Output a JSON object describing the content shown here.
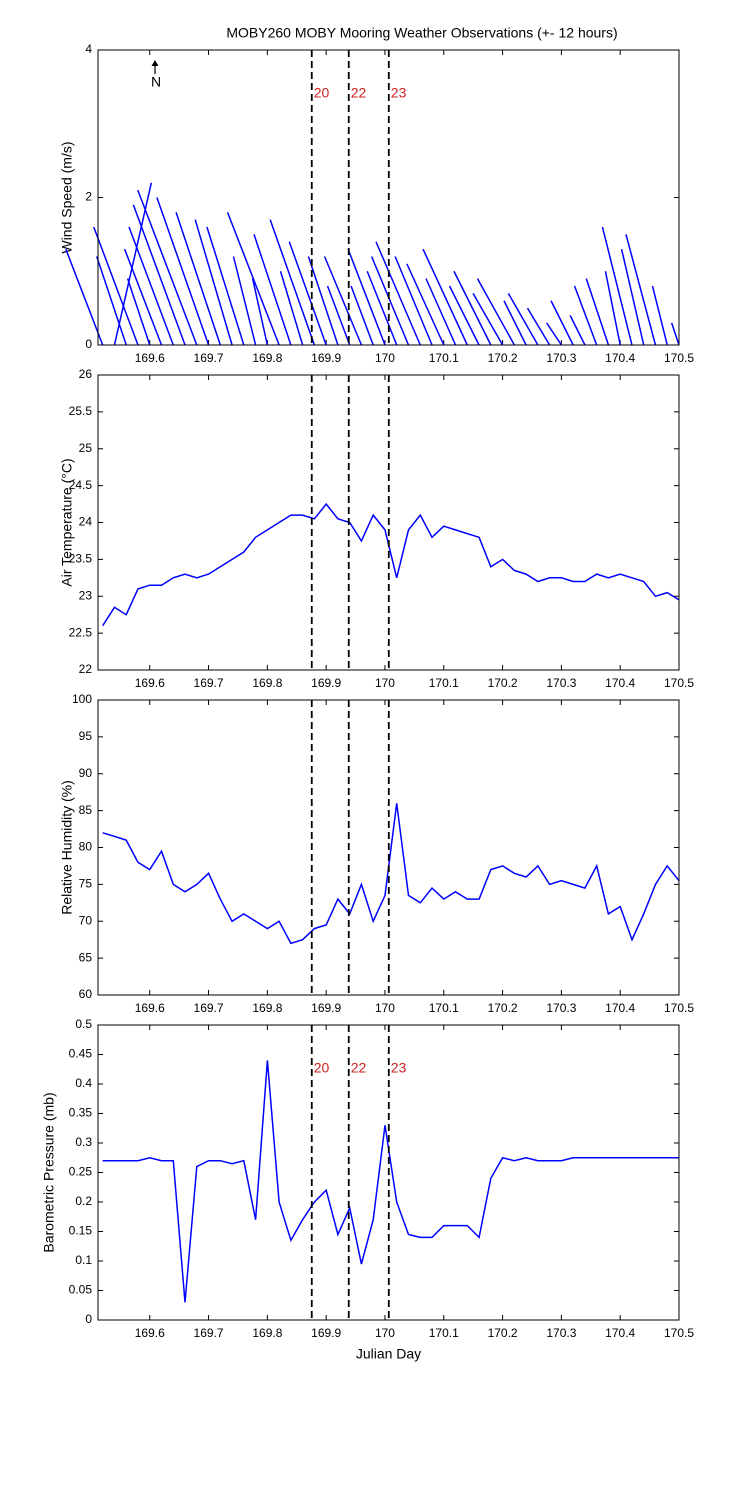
{
  "events": [
    {
      "x": 169.8755,
      "label": "20"
    },
    {
      "x": 169.9384,
      "label": "22"
    },
    {
      "x": 170.0065,
      "label": "23"
    }
  ],
  "chart_data": [
    {
      "type": "stick",
      "title": "MOBY260 MOBY Mooring Weather Observations (+- 12 hours)",
      "north_label": "N",
      "ylabel": "Wind Speed (m/s)",
      "color": "#0000ff",
      "show_event_labels": true,
      "xlim": [
        169.512,
        170.5
      ],
      "xticks": [
        169.6,
        169.7,
        169.8,
        169.9,
        170,
        170.1,
        170.2,
        170.3,
        170.4,
        170.5
      ],
      "ylim": [
        0,
        4
      ],
      "yticks": [
        0,
        2,
        4
      ],
      "x": [
        169.52,
        169.54,
        169.56,
        169.58,
        169.6,
        169.62,
        169.64,
        169.66,
        169.68,
        169.7,
        169.72,
        169.74,
        169.76,
        169.78,
        169.8,
        169.82,
        169.84,
        169.86,
        169.88,
        169.9,
        169.92,
        169.94,
        169.96,
        169.98,
        170,
        170.02,
        170.04,
        170.06,
        170.08,
        170.1,
        170.12,
        170.14,
        170.16,
        170.18,
        170.2,
        170.22,
        170.24,
        170.26,
        170.28,
        170.3,
        170.32,
        170.34,
        170.36,
        170.38,
        170.4,
        170.42,
        170.44,
        170.46,
        170.48,
        170.5
      ],
      "u": [
        -0.5,
        0.5,
        -0.4,
        -0.6,
        -0.3,
        -0.5,
        -0.6,
        -0.7,
        -0.8,
        -0.7,
        -0.6,
        -0.5,
        -0.5,
        -0.3,
        -0.2,
        -0.7,
        -0.5,
        -0.3,
        -0.6,
        -0.5,
        -0.4,
        -0.3,
        -0.5,
        -0.3,
        -0.5,
        -0.4,
        -0.5,
        -0.6,
        -0.5,
        -0.5,
        -0.4,
        -0.6,
        -0.4,
        -0.5,
        -0.4,
        -0.5,
        -0.3,
        -0.4,
        -0.3,
        -0.2,
        -0.3,
        -0.2,
        -0.3,
        -0.3,
        -0.2,
        -0.4,
        -0.3,
        -0.4,
        -0.2,
        -0.1
      ],
      "v": [
        1.3,
        2.2,
        1.2,
        1.6,
        0.9,
        1.3,
        1.6,
        1.9,
        2.1,
        2.0,
        1.8,
        1.7,
        1.6,
        1.2,
        0.9,
        1.8,
        1.5,
        1.0,
        1.7,
        1.4,
        1.2,
        0.8,
        1.2,
        0.8,
        1.3,
        1.0,
        1.2,
        1.4,
        1.2,
        1.1,
        0.9,
        1.3,
        0.8,
        1.0,
        0.7,
        0.9,
        0.6,
        0.7,
        0.5,
        0.3,
        0.6,
        0.4,
        0.8,
        0.9,
        1.0,
        1.6,
        1.3,
        1.5,
        0.8,
        0.3
      ]
    },
    {
      "type": "line",
      "ylabel": "Air Temperature (°C)",
      "color": "#0000ff",
      "show_event_labels": false,
      "xlim": [
        169.512,
        170.5
      ],
      "xticks": [
        169.6,
        169.7,
        169.8,
        169.9,
        170,
        170.1,
        170.2,
        170.3,
        170.4,
        170.5
      ],
      "ylim": [
        22,
        26
      ],
      "yticks": [
        22,
        22.5,
        23,
        23.5,
        24,
        24.5,
        25,
        25.5,
        26
      ],
      "x": [
        169.52,
        169.54,
        169.56,
        169.58,
        169.6,
        169.62,
        169.64,
        169.66,
        169.68,
        169.7,
        169.72,
        169.74,
        169.76,
        169.78,
        169.8,
        169.82,
        169.84,
        169.86,
        169.88,
        169.9,
        169.92,
        169.94,
        169.96,
        169.98,
        170,
        170.02,
        170.04,
        170.06,
        170.08,
        170.1,
        170.12,
        170.14,
        170.16,
        170.18,
        170.2,
        170.22,
        170.24,
        170.26,
        170.28,
        170.3,
        170.32,
        170.34,
        170.36,
        170.38,
        170.4,
        170.42,
        170.44,
        170.46,
        170.48,
        170.5
      ],
      "values": [
        22.6,
        22.85,
        22.75,
        23.1,
        23.15,
        23.15,
        23.25,
        23.3,
        23.25,
        23.3,
        23.4,
        23.5,
        23.6,
        23.8,
        23.9,
        24.0,
        24.1,
        24.1,
        24.05,
        24.25,
        24.05,
        24.0,
        23.75,
        24.1,
        23.9,
        23.25,
        23.9,
        24.1,
        23.8,
        23.95,
        23.9,
        23.85,
        23.8,
        23.4,
        23.5,
        23.35,
        23.3,
        23.2,
        23.25,
        23.25,
        23.2,
        23.2,
        23.3,
        23.25,
        23.3,
        23.25,
        23.2,
        23.0,
        23.05,
        22.95
      ]
    },
    {
      "type": "line",
      "ylabel": "Relative Humidity (%)",
      "color": "#0000ff",
      "show_event_labels": false,
      "xlim": [
        169.512,
        170.5
      ],
      "xticks": [
        169.6,
        169.7,
        169.8,
        169.9,
        170,
        170.1,
        170.2,
        170.3,
        170.4,
        170.5
      ],
      "ylim": [
        60,
        100
      ],
      "yticks": [
        60,
        65,
        70,
        75,
        80,
        85,
        90,
        95,
        100
      ],
      "x": [
        169.52,
        169.54,
        169.56,
        169.58,
        169.6,
        169.62,
        169.64,
        169.66,
        169.68,
        169.7,
        169.72,
        169.74,
        169.76,
        169.78,
        169.8,
        169.82,
        169.84,
        169.86,
        169.88,
        169.9,
        169.92,
        169.94,
        169.96,
        169.98,
        170,
        170.02,
        170.04,
        170.06,
        170.08,
        170.1,
        170.12,
        170.14,
        170.16,
        170.18,
        170.2,
        170.22,
        170.24,
        170.26,
        170.28,
        170.3,
        170.32,
        170.34,
        170.36,
        170.38,
        170.4,
        170.42,
        170.44,
        170.46,
        170.48,
        170.5
      ],
      "values": [
        82,
        81.5,
        81,
        78,
        77,
        79.5,
        75,
        74,
        75,
        76.5,
        73,
        70,
        71,
        70,
        69,
        70,
        67,
        67.5,
        69,
        69.5,
        73,
        71,
        75,
        70,
        73.5,
        86,
        73.5,
        72.5,
        74.5,
        73,
        74,
        73,
        73,
        77,
        77.5,
        76.5,
        76,
        77.5,
        75,
        75.5,
        75,
        74.5,
        77.5,
        71,
        72,
        67.5,
        71,
        75,
        77.5,
        75.5
      ]
    },
    {
      "type": "line",
      "ylabel": "Barometric Pressure (mb)",
      "xlabel": "Julian Day",
      "color": "#0000ff",
      "show_event_labels": true,
      "xlim": [
        169.512,
        170.5
      ],
      "xticks": [
        169.6,
        169.7,
        169.8,
        169.9,
        170,
        170.1,
        170.2,
        170.3,
        170.4,
        170.5
      ],
      "ylim": [
        0,
        0.5
      ],
      "yticks": [
        0,
        0.05,
        0.1,
        0.15,
        0.2,
        0.25,
        0.3,
        0.35,
        0.4,
        0.45,
        0.5
      ],
      "x": [
        169.52,
        169.54,
        169.56,
        169.58,
        169.6,
        169.62,
        169.64,
        169.66,
        169.68,
        169.7,
        169.72,
        169.74,
        169.76,
        169.78,
        169.8,
        169.82,
        169.84,
        169.86,
        169.88,
        169.9,
        169.92,
        169.94,
        169.96,
        169.98,
        170,
        170.02,
        170.04,
        170.06,
        170.08,
        170.1,
        170.12,
        170.14,
        170.16,
        170.18,
        170.2,
        170.22,
        170.24,
        170.26,
        170.28,
        170.3,
        170.32,
        170.34,
        170.36,
        170.38,
        170.4,
        170.42,
        170.44,
        170.46,
        170.48,
        170.5
      ],
      "values": [
        0.27,
        0.27,
        0.27,
        0.27,
        0.275,
        0.27,
        0.27,
        0.03,
        0.26,
        0.27,
        0.27,
        0.265,
        0.27,
        0.17,
        0.44,
        0.2,
        0.135,
        0.17,
        0.2,
        0.22,
        0.145,
        0.19,
        0.095,
        0.17,
        0.33,
        0.2,
        0.145,
        0.14,
        0.14,
        0.16,
        0.16,
        0.16,
        0.14,
        0.24,
        0.275,
        0.27,
        0.275,
        0.27,
        0.27,
        0.27,
        0.275,
        0.275,
        0.275,
        0.275,
        0.275,
        0.275,
        0.275,
        0.275,
        0.275,
        0.275
      ]
    }
  ]
}
